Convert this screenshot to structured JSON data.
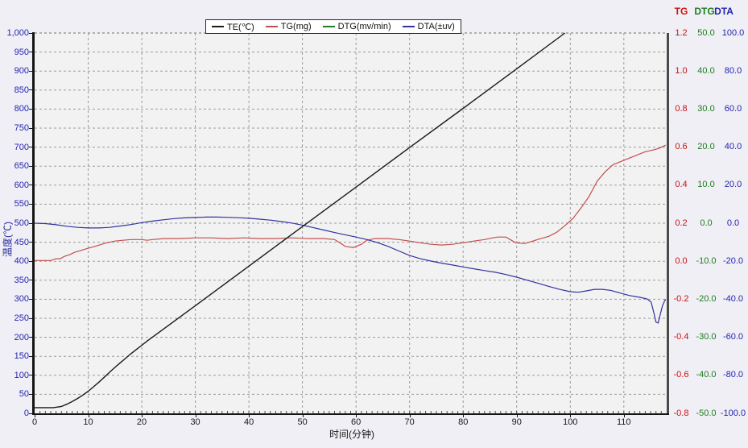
{
  "legend": {
    "items": [
      {
        "label": "TE(℃)",
        "color": "#1a1a1a"
      },
      {
        "label": "TG(mg)",
        "color": "#c24f4f"
      },
      {
        "label": "DTG(mv/min)",
        "color": "#1e7d1e"
      },
      {
        "label": "DTA(±uv)",
        "color": "#3232a0"
      }
    ]
  },
  "axes": {
    "left": {
      "title": "温度(℃)",
      "color": "#2525b0",
      "ticks": [
        "1,000",
        "950",
        "900",
        "850",
        "800",
        "750",
        "700",
        "650",
        "600",
        "550",
        "500",
        "450",
        "400",
        "350",
        "300",
        "250",
        "200",
        "150",
        "100",
        "50",
        "0"
      ]
    },
    "bottom": {
      "title": "时间(分钟)",
      "color": "#1a1a1a",
      "ticks": [
        "0",
        "10",
        "20",
        "30",
        "40",
        "50",
        "60",
        "70",
        "80",
        "90",
        "100",
        "110"
      ]
    },
    "right": {
      "headers": [
        {
          "label": "TG",
          "color": "#cc1111"
        },
        {
          "label": "DTG",
          "color": "#1e7d1e"
        },
        {
          "label": "DTA",
          "color": "#2525b0"
        }
      ],
      "tg": {
        "color": "#cc1111",
        "ticks": [
          "1.2",
          "1.0",
          "0.8",
          "0.6",
          "0.4",
          "0.2",
          "0.0",
          "-0.2",
          "-0.4",
          "-0.6",
          "-0.8"
        ]
      },
      "dtg": {
        "color": "#1e7d1e",
        "ticks": [
          "50.0",
          "40.0",
          "30.0",
          "20.0",
          "10.0",
          "0.0",
          "-10.0",
          "-20.0",
          "-30.0",
          "-40.0",
          "-50.0"
        ]
      },
      "dta": {
        "color": "#2525b0",
        "ticks": [
          "100.0",
          "80.0",
          "60.0",
          "40.0",
          "20.0",
          "0.0",
          "-20.0",
          "-40.0",
          "-60.0",
          "-80.0",
          "-100.0"
        ]
      }
    }
  },
  "chart_data": {
    "type": "line",
    "title": "",
    "x_axis": {
      "label": "时间(分钟)",
      "range": [
        0,
        118
      ],
      "tick_step": 10,
      "grid": true
    },
    "y_axes": {
      "temperature": {
        "label": "温度(℃)",
        "range": [
          0,
          1000
        ],
        "tick_step": 50,
        "grid": true
      },
      "tg": {
        "label": "TG(mg)",
        "range": [
          -0.8,
          1.2
        ],
        "tick_step": 0.2
      },
      "dtg": {
        "label": "DTG(mv/min)",
        "range": [
          -50,
          50
        ],
        "tick_step": 10
      },
      "dta": {
        "label": "DTA(±uv)",
        "range": [
          -100,
          100
        ],
        "tick_step": 20
      }
    },
    "grid_style": "dashed",
    "legend_position": "top-center",
    "series": [
      {
        "name": "TE",
        "axis": "temperature",
        "color": "#1a1a1a",
        "width": 1.4,
        "z": 4,
        "points": [
          [
            0,
            15
          ],
          [
            3.5,
            15
          ],
          [
            5,
            18
          ],
          [
            6,
            24
          ],
          [
            7,
            31
          ],
          [
            8,
            39
          ],
          [
            9,
            48
          ],
          [
            10,
            58
          ],
          [
            11,
            70
          ],
          [
            12,
            82
          ],
          [
            13,
            95
          ],
          [
            14,
            108
          ],
          [
            15,
            121
          ],
          [
            16,
            133
          ],
          [
            17,
            145
          ],
          [
            18,
            157
          ],
          [
            19,
            168
          ],
          [
            20,
            179
          ],
          [
            21,
            190
          ],
          [
            30,
            283
          ],
          [
            40,
            387
          ],
          [
            50,
            491
          ],
          [
            60,
            595
          ],
          [
            70,
            699
          ],
          [
            80,
            802
          ],
          [
            90,
            906
          ],
          [
            99,
            1000
          ]
        ]
      },
      {
        "name": "TG",
        "axis": "tg",
        "color": "#c24f4f",
        "width": 1.2,
        "z": 1,
        "points": [
          [
            0,
            0.004
          ],
          [
            3,
            0.004
          ],
          [
            4,
            0.013
          ],
          [
            4.8,
            0.013
          ],
          [
            5.5,
            0.025
          ],
          [
            6.5,
            0.034
          ],
          [
            7.5,
            0.047
          ],
          [
            8.5,
            0.055
          ],
          [
            9.5,
            0.064
          ],
          [
            10.5,
            0.072
          ],
          [
            11.5,
            0.08
          ],
          [
            12.5,
            0.089
          ],
          [
            13.5,
            0.097
          ],
          [
            15,
            0.106
          ],
          [
            16.5,
            0.11
          ],
          [
            18,
            0.114
          ],
          [
            20,
            0.114
          ],
          [
            21,
            0.11
          ],
          [
            22,
            0.114
          ],
          [
            24,
            0.119
          ],
          [
            27,
            0.119
          ],
          [
            30,
            0.123
          ],
          [
            33,
            0.123
          ],
          [
            36,
            0.119
          ],
          [
            39,
            0.123
          ],
          [
            42,
            0.119
          ],
          [
            45,
            0.119
          ],
          [
            48,
            0.123
          ],
          [
            51,
            0.119
          ],
          [
            54,
            0.119
          ],
          [
            56,
            0.114
          ],
          [
            57.2,
            0.093
          ],
          [
            58,
            0.078
          ],
          [
            59.5,
            0.072
          ],
          [
            61,
            0.089
          ],
          [
            62,
            0.11
          ],
          [
            63.5,
            0.119
          ],
          [
            66,
            0.119
          ],
          [
            68,
            0.114
          ],
          [
            70,
            0.106
          ],
          [
            72,
            0.097
          ],
          [
            74,
            0.089
          ],
          [
            76,
            0.085
          ],
          [
            78,
            0.089
          ],
          [
            80,
            0.097
          ],
          [
            82,
            0.106
          ],
          [
            84,
            0.114
          ],
          [
            85.5,
            0.123
          ],
          [
            86.5,
            0.127
          ],
          [
            88,
            0.127
          ],
          [
            89,
            0.11
          ],
          [
            89.8,
            0.097
          ],
          [
            91.5,
            0.093
          ],
          [
            93,
            0.106
          ],
          [
            94.5,
            0.119
          ],
          [
            96,
            0.131
          ],
          [
            97.5,
            0.153
          ],
          [
            99,
            0.187
          ],
          [
            100.5,
            0.225
          ],
          [
            102,
            0.28
          ],
          [
            103.5,
            0.34
          ],
          [
            105,
            0.42
          ],
          [
            106.5,
            0.47
          ],
          [
            108,
            0.508
          ],
          [
            109.5,
            0.525
          ],
          [
            111,
            0.542
          ],
          [
            112.5,
            0.559
          ],
          [
            114,
            0.576
          ],
          [
            115.5,
            0.585
          ],
          [
            116.5,
            0.593
          ],
          [
            117.8,
            0.61
          ]
        ]
      },
      {
        "name": "DTG",
        "axis": "dtg",
        "color": "#1e7d1e",
        "width": 1.2,
        "z": 2,
        "visible": false,
        "points": []
      },
      {
        "name": "DTA",
        "axis": "dta",
        "color": "#3232a0",
        "width": 1.2,
        "z": 3,
        "points": [
          [
            0,
            0
          ],
          [
            2,
            -0.2
          ],
          [
            4,
            -0.8
          ],
          [
            6,
            -1.6
          ],
          [
            8,
            -2.2
          ],
          [
            10,
            -2.5
          ],
          [
            12,
            -2.5
          ],
          [
            14,
            -2.2
          ],
          [
            16,
            -1.5
          ],
          [
            18,
            -0.7
          ],
          [
            20,
            0.3
          ],
          [
            22,
            1.1
          ],
          [
            24,
            1.8
          ],
          [
            26,
            2.4
          ],
          [
            28,
            2.8
          ],
          [
            30,
            3.0
          ],
          [
            32,
            3.2
          ],
          [
            34,
            3.2
          ],
          [
            36,
            3.1
          ],
          [
            38,
            2.9
          ],
          [
            40,
            2.6
          ],
          [
            42,
            2.1
          ],
          [
            44,
            1.6
          ],
          [
            46,
            0.9
          ],
          [
            48,
            0.1
          ],
          [
            50,
            -1.0
          ],
          [
            52,
            -2.3
          ],
          [
            54,
            -3.6
          ],
          [
            56,
            -4.9
          ],
          [
            58,
            -6.1
          ],
          [
            60,
            -7.3
          ],
          [
            62,
            -8.6
          ],
          [
            64,
            -10.2
          ],
          [
            66,
            -12.2
          ],
          [
            68,
            -14.6
          ],
          [
            70,
            -17.0
          ],
          [
            72,
            -18.7
          ],
          [
            74,
            -19.9
          ],
          [
            76,
            -21.0
          ],
          [
            78,
            -22.0
          ],
          [
            80,
            -23.0
          ],
          [
            82,
            -24.0
          ],
          [
            84,
            -24.9
          ],
          [
            86,
            -25.8
          ],
          [
            88,
            -27.0
          ],
          [
            90,
            -28.4
          ],
          [
            92,
            -30.0
          ],
          [
            94,
            -31.6
          ],
          [
            96,
            -33.2
          ],
          [
            98,
            -34.8
          ],
          [
            100,
            -36.0
          ],
          [
            101.5,
            -36.3
          ],
          [
            103,
            -35.6
          ],
          [
            104.5,
            -34.8
          ],
          [
            106,
            -34.8
          ],
          [
            107.5,
            -35.3
          ],
          [
            109,
            -36.5
          ],
          [
            111,
            -38.0
          ],
          [
            113,
            -39.0
          ],
          [
            114.3,
            -39.8
          ],
          [
            115.1,
            -41.5
          ],
          [
            115.6,
            -47.0
          ],
          [
            116,
            -52.0
          ],
          [
            116.4,
            -52.5
          ],
          [
            116.8,
            -48.0
          ],
          [
            117.2,
            -43.5
          ],
          [
            117.6,
            -41.0
          ],
          [
            117.8,
            -40.0
          ]
        ]
      }
    ]
  }
}
